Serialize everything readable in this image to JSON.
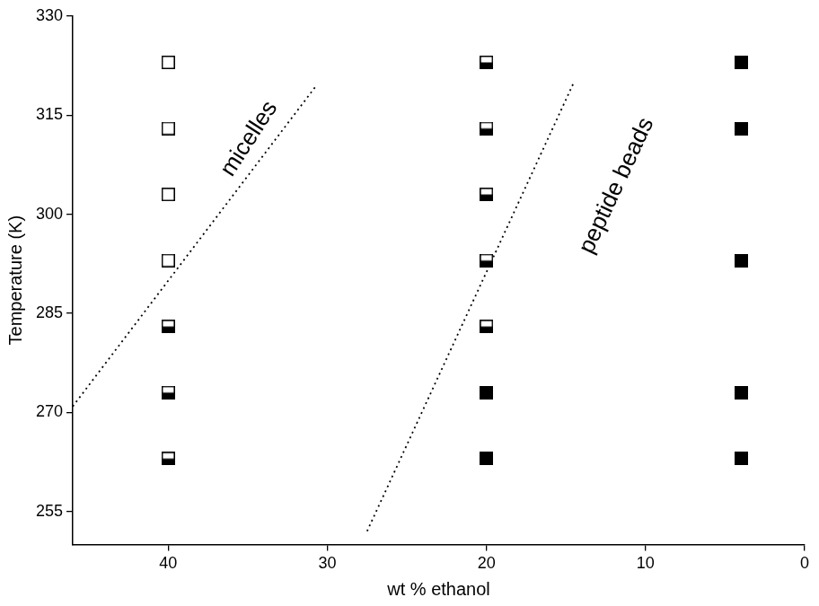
{
  "chart_data": {
    "type": "scatter",
    "x_label": "wt % ethanol",
    "y_label": "Temperature (K)",
    "xlim": [
      46,
      0
    ],
    "xticks": [
      40,
      30,
      20,
      10,
      0
    ],
    "ylim": [
      250,
      330
    ],
    "yticks": [
      255,
      270,
      285,
      300,
      315,
      330
    ],
    "grid": false,
    "annotations": [
      "micelles",
      "peptide beads"
    ],
    "series": [
      {
        "marker": "square-open",
        "color": "#000000",
        "x": [
          40,
          40,
          40,
          40
        ],
        "values": [
          323,
          313,
          303,
          293
        ]
      },
      {
        "marker": "square-half",
        "color": "#000000",
        "x": [
          40,
          40,
          40,
          20,
          20,
          20,
          20,
          20
        ],
        "values": [
          283,
          273,
          263,
          323,
          313,
          303,
          293,
          283
        ]
      },
      {
        "marker": "square",
        "color": "#000000",
        "x": [
          20,
          20,
          4,
          4,
          4,
          4,
          4
        ],
        "values": [
          273,
          263,
          323,
          313,
          293,
          273,
          263
        ]
      },
      {
        "type": "line",
        "line_style": "dotted",
        "color": "#000000",
        "x": [
          46,
          30.75
        ],
        "values": [
          270.9,
          319.3
        ]
      },
      {
        "type": "line",
        "line_style": "dotted",
        "color": "#000000",
        "x": [
          27.5,
          14.5
        ],
        "values": [
          252,
          320
        ]
      }
    ]
  }
}
